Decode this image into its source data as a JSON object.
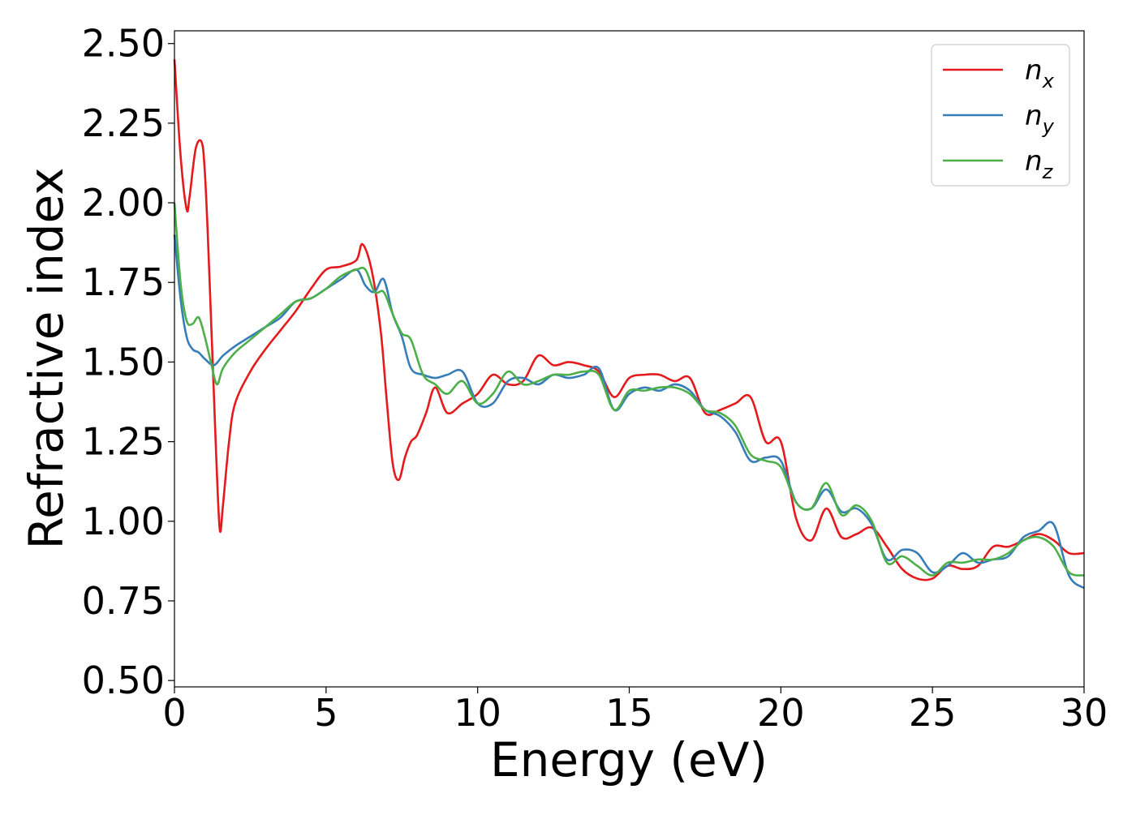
{
  "chart_data": {
    "type": "line",
    "title": "",
    "xlabel": "Energy (eV)",
    "ylabel": "Refractive index",
    "xlim": [
      0,
      30
    ],
    "ylim": [
      0.48,
      2.54
    ],
    "xticks": [
      0,
      5,
      10,
      15,
      20,
      25,
      30
    ],
    "xtick_labels": [
      "0",
      "5",
      "10",
      "15",
      "20",
      "25",
      "30"
    ],
    "yticks": [
      0.5,
      0.75,
      1.0,
      1.25,
      1.5,
      1.75,
      2.0,
      2.25,
      2.5
    ],
    "ytick_labels": [
      "0.50",
      "0.75",
      "1.00",
      "1.25",
      "1.50",
      "1.75",
      "2.00",
      "2.25",
      "2.50"
    ],
    "grid": false,
    "legend_position": "top-right",
    "series": [
      {
        "name": "n_x",
        "label_main": "n",
        "label_sub": "x",
        "color": "#e41a1c",
        "x": [
          0,
          0.2,
          0.4,
          0.5,
          0.7,
          0.9,
          1.0,
          1.1,
          1.2,
          1.3,
          1.4,
          1.5,
          1.6,
          1.8,
          2.0,
          2.5,
          3.0,
          3.5,
          4.0,
          4.5,
          5.0,
          5.5,
          6.0,
          6.2,
          6.5,
          6.8,
          7.0,
          7.2,
          7.4,
          7.6,
          7.8,
          8.0,
          8.3,
          8.6,
          9.0,
          9.5,
          10.0,
          10.5,
          11.0,
          11.5,
          12.0,
          12.5,
          13.0,
          13.5,
          14.0,
          14.5,
          15.0,
          15.5,
          16.0,
          16.5,
          17.0,
          17.5,
          18.0,
          18.5,
          19.0,
          19.5,
          20.0,
          20.5,
          21.0,
          21.5,
          22.0,
          22.5,
          23.0,
          23.5,
          24.0,
          24.5,
          25.0,
          25.5,
          26.0,
          26.5,
          27.0,
          27.5,
          28.0,
          28.5,
          29.0,
          29.5,
          30.0
        ],
        "values": [
          2.45,
          2.15,
          1.98,
          2.02,
          2.17,
          2.19,
          2.1,
          1.9,
          1.65,
          1.4,
          1.15,
          0.97,
          1.05,
          1.25,
          1.37,
          1.47,
          1.54,
          1.6,
          1.66,
          1.73,
          1.79,
          1.8,
          1.82,
          1.87,
          1.79,
          1.6,
          1.38,
          1.18,
          1.13,
          1.2,
          1.25,
          1.27,
          1.34,
          1.42,
          1.34,
          1.37,
          1.4,
          1.46,
          1.43,
          1.44,
          1.52,
          1.49,
          1.5,
          1.49,
          1.47,
          1.39,
          1.45,
          1.46,
          1.46,
          1.44,
          1.45,
          1.34,
          1.35,
          1.37,
          1.39,
          1.25,
          1.25,
          1.01,
          0.94,
          1.04,
          0.95,
          0.96,
          0.98,
          0.92,
          0.85,
          0.82,
          0.82,
          0.86,
          0.85,
          0.86,
          0.92,
          0.92,
          0.94,
          0.96,
          0.94,
          0.9,
          0.9
        ]
      },
      {
        "name": "n_y",
        "label_main": "n",
        "label_sub": "y",
        "color": "#377eb8",
        "x": [
          0,
          0.2,
          0.4,
          0.6,
          0.8,
          1.0,
          1.3,
          1.6,
          2.0,
          2.5,
          3.0,
          3.5,
          4.0,
          4.5,
          5.0,
          5.5,
          6.0,
          6.3,
          6.6,
          6.9,
          7.2,
          7.5,
          7.8,
          8.2,
          8.6,
          9.0,
          9.5,
          10.0,
          10.5,
          11.0,
          11.5,
          12.0,
          12.5,
          13.0,
          13.5,
          14.0,
          14.5,
          15.0,
          15.5,
          16.0,
          16.5,
          17.0,
          17.5,
          18.0,
          18.5,
          19.0,
          19.5,
          20.0,
          20.5,
          21.0,
          21.5,
          22.0,
          22.5,
          23.0,
          23.5,
          24.0,
          24.5,
          25.0,
          25.5,
          26.0,
          26.5,
          27.0,
          27.5,
          28.0,
          28.5,
          29.0,
          29.5,
          30.0
        ],
        "values": [
          1.9,
          1.7,
          1.58,
          1.54,
          1.53,
          1.51,
          1.49,
          1.52,
          1.55,
          1.58,
          1.61,
          1.64,
          1.69,
          1.7,
          1.73,
          1.76,
          1.79,
          1.74,
          1.72,
          1.76,
          1.65,
          1.58,
          1.48,
          1.46,
          1.45,
          1.46,
          1.47,
          1.37,
          1.37,
          1.44,
          1.45,
          1.43,
          1.46,
          1.45,
          1.46,
          1.48,
          1.35,
          1.4,
          1.42,
          1.41,
          1.43,
          1.41,
          1.35,
          1.33,
          1.28,
          1.19,
          1.2,
          1.19,
          1.06,
          1.04,
          1.1,
          1.03,
          1.04,
          0.99,
          0.88,
          0.91,
          0.9,
          0.84,
          0.86,
          0.9,
          0.87,
          0.88,
          0.89,
          0.95,
          0.97,
          0.99,
          0.83,
          0.79
        ]
      },
      {
        "name": "n_z",
        "label_main": "n",
        "label_sub": "z",
        "color": "#4daf4a",
        "x": [
          0,
          0.2,
          0.4,
          0.6,
          0.8,
          1.0,
          1.2,
          1.4,
          1.6,
          2.0,
          2.5,
          3.0,
          3.5,
          4.0,
          4.5,
          5.0,
          5.5,
          6.0,
          6.3,
          6.6,
          6.9,
          7.2,
          7.5,
          7.8,
          8.2,
          8.6,
          9.0,
          9.5,
          10.0,
          10.5,
          11.0,
          11.5,
          12.0,
          12.5,
          13.0,
          13.5,
          14.0,
          14.5,
          15.0,
          15.5,
          16.0,
          16.5,
          17.0,
          17.5,
          18.0,
          18.5,
          19.0,
          19.5,
          20.0,
          20.5,
          21.0,
          21.5,
          22.0,
          22.5,
          23.0,
          23.5,
          24.0,
          24.5,
          25.0,
          25.5,
          26.0,
          26.5,
          27.0,
          27.5,
          28.0,
          28.5,
          29.0,
          29.5,
          30.0
        ],
        "values": [
          2.0,
          1.75,
          1.63,
          1.62,
          1.64,
          1.58,
          1.5,
          1.43,
          1.48,
          1.53,
          1.57,
          1.61,
          1.65,
          1.69,
          1.7,
          1.73,
          1.77,
          1.79,
          1.79,
          1.72,
          1.72,
          1.65,
          1.59,
          1.57,
          1.46,
          1.43,
          1.4,
          1.44,
          1.37,
          1.4,
          1.47,
          1.43,
          1.44,
          1.46,
          1.46,
          1.47,
          1.46,
          1.35,
          1.41,
          1.41,
          1.42,
          1.42,
          1.4,
          1.35,
          1.34,
          1.3,
          1.21,
          1.19,
          1.17,
          1.06,
          1.04,
          1.12,
          1.02,
          1.05,
          1.0,
          0.87,
          0.89,
          0.86,
          0.83,
          0.87,
          0.87,
          0.88,
          0.88,
          0.9,
          0.94,
          0.95,
          0.92,
          0.84,
          0.83
        ]
      }
    ]
  }
}
